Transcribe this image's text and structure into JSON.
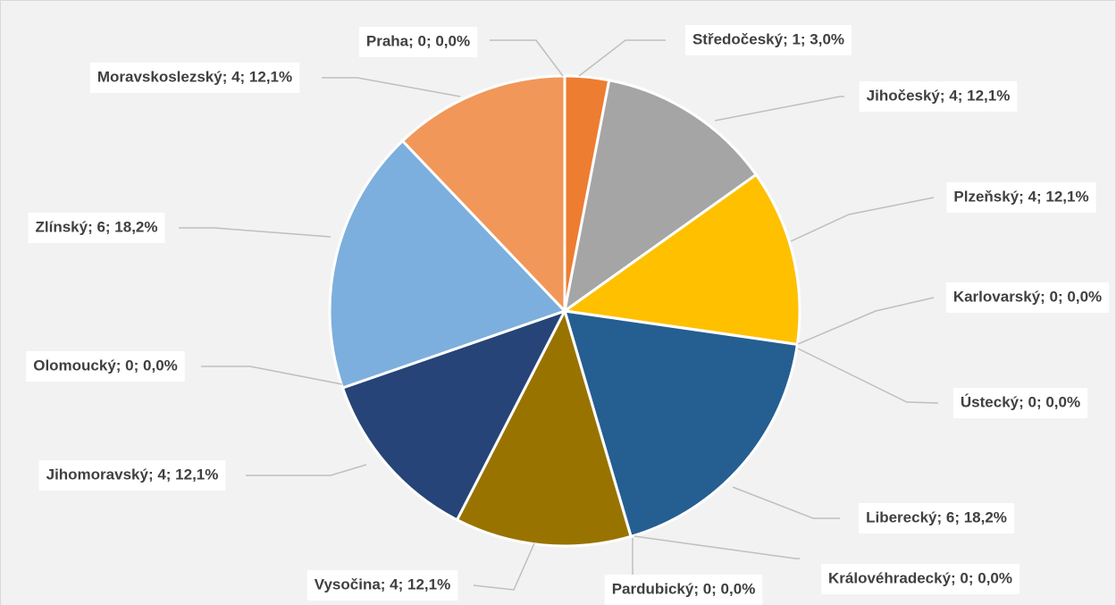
{
  "chart_data": {
    "type": "pie",
    "categories": [
      "Praha",
      "Středočeský",
      "Jihočeský",
      "Plzeňský",
      "Karlovarský",
      "Ústecký",
      "Liberecký",
      "Královéhradecký",
      "Pardubický",
      "Vysočina",
      "Jihomoravský",
      "Olomoucký",
      "Zlínský",
      "Moravskoslezský"
    ],
    "values": [
      0,
      1,
      4,
      4,
      0,
      0,
      6,
      0,
      0,
      4,
      4,
      0,
      6,
      4
    ],
    "value_labels": [
      "Praha; 0; 0,0%",
      "Středočeský; 1; 3,0%",
      "Jihočeský; 4; 12,1%",
      "Plzeňský; 4; 12,1%",
      "Karlovarský; 0; 0,0%",
      "Ústecký; 0; 0,0%",
      "Liberecký; 6; 18,2%",
      "Královéhradecký; 0; 0,0%",
      "Pardubický; 0; 0,0%",
      "Vysočina; 4; 12,1%",
      "Jihomoravský; 4; 12,1%",
      "Olomoucký; 0; 0,0%",
      "Zlínský; 6; 18,2%",
      "Moravskoslezský; 4; 12,1%"
    ],
    "colors": [
      "#4472c4",
      "#ed7d31",
      "#a5a5a5",
      "#ffc000",
      "#5b9bd5",
      "#70ad47",
      "#255e91",
      "#9e480e",
      "#636363",
      "#997300",
      "#264478",
      "#43682b",
      "#7cafdd",
      "#f1975a"
    ]
  }
}
